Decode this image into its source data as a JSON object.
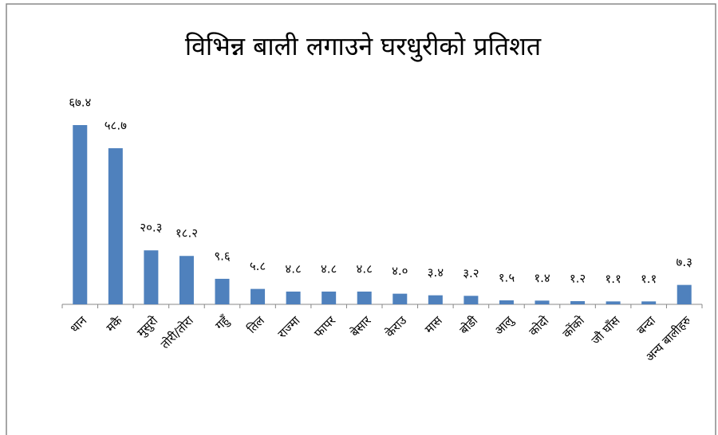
{
  "chart_data": {
    "type": "bar",
    "title": "विभिन्न बाली लगाउने घरधुरीको प्रतिशत",
    "categories": [
      "धान",
      "मकै",
      "मुसुरो",
      "तोरी/तोरा",
      "गहुँ",
      "तिल",
      "राज्मा",
      "फापर",
      "बेसार",
      "केराउ",
      "मास",
      "बोडी",
      "आलु",
      "कोदो",
      "कोंको",
      "जौ घाँस",
      "बन्दा",
      "अन्य बालीहरु"
    ],
    "values": [
      67.4,
      58.7,
      20.3,
      18.2,
      9.6,
      5.8,
      4.8,
      4.8,
      4.8,
      4.0,
      3.4,
      3.2,
      1.5,
      1.4,
      1.2,
      1.1,
      1.1,
      7.3
    ],
    "value_labels": [
      "६७.४",
      "५८.७",
      "२०.३",
      "१८.२",
      "९.६",
      "५.८",
      "४.८",
      "४.८",
      "४.८",
      "४.०",
      "३.४",
      "३.२",
      "१.५",
      "१.४",
      "१.२",
      "१.१",
      "१.१",
      "७.३"
    ],
    "color": "#4f81bd"
  }
}
